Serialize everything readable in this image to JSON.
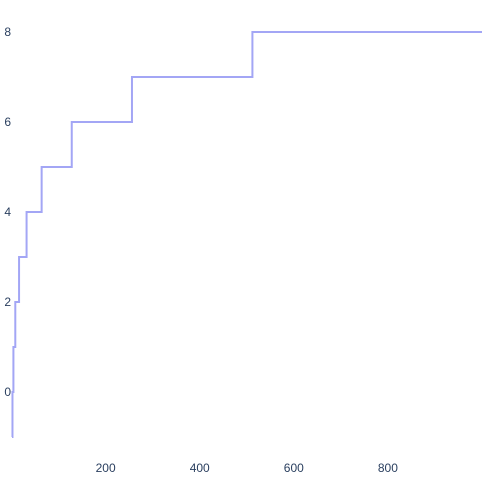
{
  "chart_data": {
    "type": "line",
    "line_shape": "step",
    "x": [
      1,
      2,
      4,
      8,
      16,
      32,
      64,
      128,
      256,
      512,
      1000
    ],
    "y": [
      -1,
      0,
      1,
      2,
      3,
      4,
      5,
      6,
      7,
      8,
      8
    ],
    "xlim": [
      1,
      1000
    ],
    "ylim": [
      -1,
      8
    ],
    "x_ticks": [
      200,
      400,
      600,
      800
    ],
    "y_ticks": [
      0,
      2,
      4,
      6,
      8
    ],
    "x_tick_labels": [
      "200",
      "400",
      "600",
      "800"
    ],
    "y_tick_labels": [
      "0",
      "2",
      "4",
      "6",
      "8"
    ],
    "title": "",
    "xlabel": "",
    "ylabel": "",
    "grid": false,
    "legend": "none",
    "colors": {
      "line": "#a3a6f5",
      "tick_text": "#2a3f5f",
      "background": "#ffffff"
    }
  }
}
